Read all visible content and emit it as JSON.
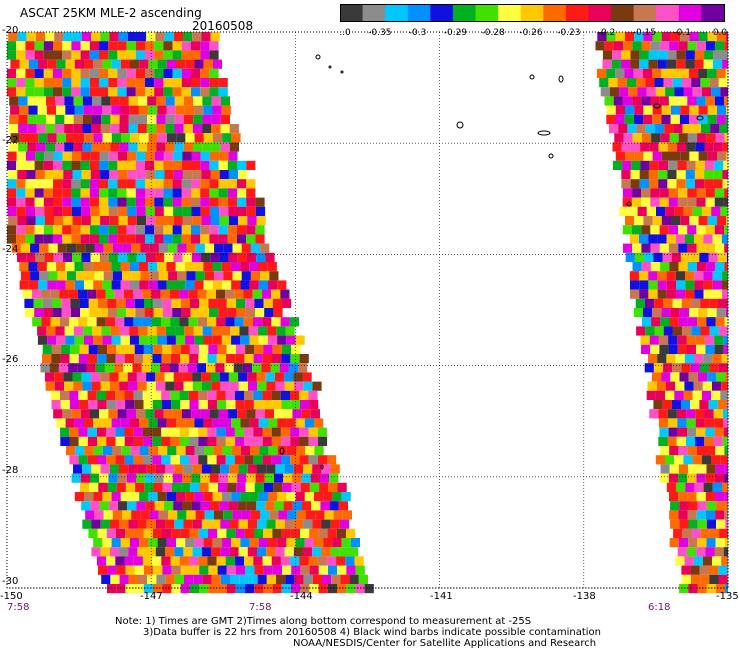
{
  "title": "ASCAT 25KM MLE-2 ascending",
  "date": "20160508",
  "legend": {
    "labels": [
      "-1.0",
      "-0.35",
      "-0.3",
      "-0.29",
      "-0.28",
      "-0.26",
      "-0.23",
      "-0.2",
      "-0.15",
      "-0.1",
      "0.0"
    ],
    "colors": [
      "#3a3a3a",
      "#8c8c8c",
      "#00c8ff",
      "#0090ff",
      "#1010e0",
      "#00b020",
      "#40e000",
      "#ffff40",
      "#ffc800",
      "#ff6a00",
      "#ff1a1a",
      "#e8005a",
      "#7a3a10",
      "#c87850",
      "#ff50c8",
      "#e000e0",
      "#7000a0"
    ]
  },
  "axes": {
    "lon_labels": [
      "-150",
      "-147",
      "-144",
      "-141",
      "-138",
      "-135"
    ],
    "lat_labels": [
      "-20",
      "-22",
      "-24",
      "-26",
      "-28",
      "-30"
    ],
    "lon_range": [
      -150,
      -135
    ],
    "lat_range": [
      -30,
      -20
    ]
  },
  "times": [
    "7:58",
    "7:58",
    "6:18"
  ],
  "note": {
    "line1": "Note: 1) Times are GMT 2)Times along bottom correspond to measurement at -25S",
    "line2": "3)Data buffer is 22 hrs from 20160508 4) Black wind barbs indicate possible contamination",
    "line3": "NOAA/NESDIS/Center for Satellite Applications and Research"
  }
}
